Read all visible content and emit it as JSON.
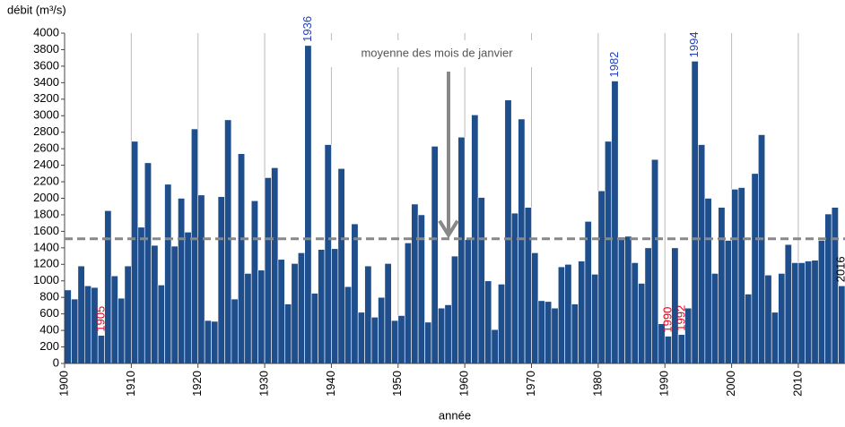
{
  "chart_data": {
    "type": "bar",
    "y_label": "débit (m³/s)",
    "x_label": "année",
    "x": [
      1900,
      1901,
      1902,
      1903,
      1904,
      1905,
      1906,
      1907,
      1908,
      1909,
      1910,
      1911,
      1912,
      1913,
      1914,
      1915,
      1916,
      1917,
      1918,
      1919,
      1920,
      1921,
      1922,
      1923,
      1924,
      1925,
      1926,
      1927,
      1928,
      1929,
      1930,
      1931,
      1932,
      1933,
      1934,
      1935,
      1936,
      1937,
      1938,
      1939,
      1940,
      1941,
      1942,
      1943,
      1944,
      1945,
      1946,
      1947,
      1948,
      1949,
      1950,
      1951,
      1952,
      1953,
      1954,
      1955,
      1956,
      1957,
      1958,
      1959,
      1960,
      1961,
      1962,
      1963,
      1964,
      1965,
      1966,
      1967,
      1968,
      1969,
      1970,
      1971,
      1972,
      1973,
      1974,
      1975,
      1976,
      1977,
      1978,
      1979,
      1980,
      1981,
      1982,
      1983,
      1984,
      1985,
      1986,
      1987,
      1988,
      1989,
      1990,
      1991,
      1992,
      1993,
      1994,
      1995,
      1996,
      1997,
      1998,
      1999,
      2000,
      2001,
      2002,
      2003,
      2004,
      2005,
      2006,
      2007,
      2008,
      2009,
      2010,
      2011,
      2012,
      2013,
      2014,
      2015,
      2016
    ],
    "values": [
      890,
      780,
      1180,
      940,
      920,
      340,
      1850,
      1060,
      790,
      1180,
      2690,
      1650,
      2430,
      1430,
      950,
      2170,
      1420,
      2000,
      1590,
      2840,
      2040,
      520,
      510,
      2020,
      2950,
      780,
      2540,
      1090,
      1970,
      1130,
      2250,
      2370,
      1260,
      720,
      1210,
      1340,
      3850,
      850,
      1380,
      2650,
      1390,
      2360,
      930,
      1690,
      620,
      1180,
      560,
      800,
      1210,
      520,
      580,
      1460,
      1930,
      1800,
      500,
      2630,
      670,
      710,
      1300,
      2740,
      1500,
      3010,
      2010,
      1000,
      410,
      960,
      3190,
      1820,
      2960,
      1890,
      1340,
      760,
      750,
      670,
      1170,
      1200,
      720,
      1240,
      1720,
      1080,
      2090,
      2690,
      3420,
      1530,
      1540,
      1220,
      970,
      1400,
      2470,
      480,
      330,
      1400,
      350,
      670,
      3660,
      2650,
      2000,
      1090,
      1890,
      1490,
      2110,
      2130,
      840,
      2300,
      2770,
      1070,
      620,
      1090,
      1440,
      1220,
      1220,
      1240,
      1250,
      1490,
      1810,
      1890,
      940
    ],
    "color": "#1f4e8c",
    "xlim": [
      1900,
      2017
    ],
    "xticks": [
      1900,
      1910,
      1920,
      1930,
      1940,
      1950,
      1960,
      1970,
      1980,
      1990,
      2000,
      2010
    ],
    "ylim": [
      0,
      4000
    ],
    "yticks": [
      0,
      200,
      400,
      600,
      800,
      1000,
      1200,
      1400,
      1600,
      1800,
      2000,
      2200,
      2400,
      2600,
      2800,
      3000,
      3200,
      3400,
      3600,
      3800,
      4000
    ],
    "grid": "x",
    "reference_line": {
      "value": 1510,
      "label": "moyenne des mois de janvier",
      "color": "#888888"
    },
    "annotations": [
      {
        "x": 1905,
        "color": "#e8001c"
      },
      {
        "x": 1936,
        "color": "#1f3fbf"
      },
      {
        "x": 1982,
        "color": "#1f3fbf"
      },
      {
        "x": 1990,
        "color": "#e8001c"
      },
      {
        "x": 1992,
        "color": "#e8001c"
      },
      {
        "x": 1994,
        "color": "#1f3fbf"
      },
      {
        "x": 2016,
        "color": "#000000"
      }
    ]
  }
}
